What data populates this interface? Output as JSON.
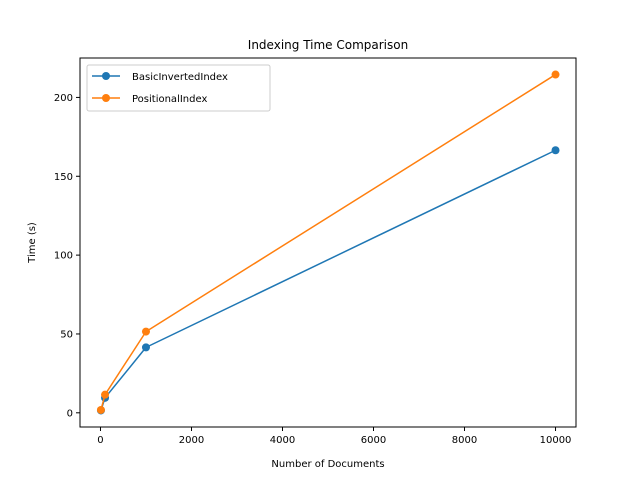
{
  "chart_data": {
    "type": "line",
    "title": "Indexing Time Comparison",
    "xlabel": "Number of Documents",
    "ylabel": "Time (s)",
    "xlim": [
      -450,
      10450
    ],
    "ylim": [
      -9,
      225
    ],
    "xticks": [
      0,
      2000,
      4000,
      6000,
      8000,
      10000
    ],
    "yticks": [
      0,
      50,
      100,
      150,
      200
    ],
    "grid": false,
    "legend_position": "top-left",
    "x": [
      10,
      100,
      1000,
      10000
    ],
    "series": [
      {
        "name": "BasicInvertedIndex",
        "color": "#1f77b4",
        "marker": "circle",
        "values": [
          1.5,
          9.5,
          41.5,
          166.5
        ]
      },
      {
        "name": "PositionalIndex",
        "color": "#ff7f0e",
        "marker": "circle",
        "values": [
          1.8,
          11.5,
          51.5,
          214.5
        ]
      }
    ]
  }
}
